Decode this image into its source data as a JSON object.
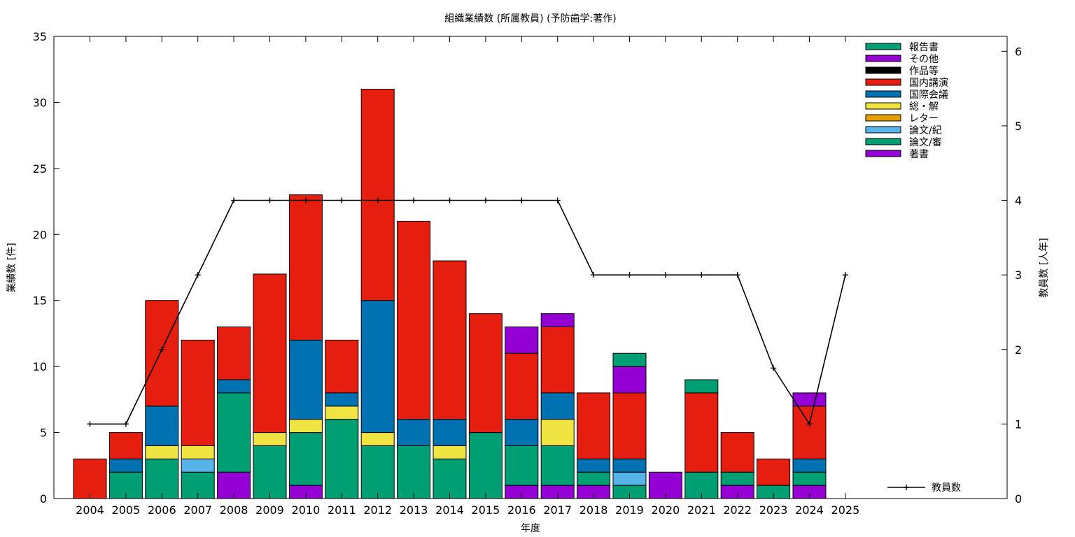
{
  "chart_data": {
    "type": "bar",
    "stacked": true,
    "title": "組織業績数 (所属教員) (予防歯学:著作)",
    "xlabel": "年度",
    "ylabel": "業績数 [件]",
    "y2label": "教員数 [人年]",
    "ylim": [
      0,
      35
    ],
    "y2lim": [
      0,
      6.2
    ],
    "yticks": [
      0,
      5,
      10,
      15,
      20,
      25,
      30,
      35
    ],
    "y2ticks": [
      0,
      1,
      2,
      3,
      4,
      5,
      6
    ],
    "categories": [
      "2004",
      "2005",
      "2006",
      "2007",
      "2008",
      "2009",
      "2010",
      "2011",
      "2012",
      "2013",
      "2014",
      "2015",
      "2016",
      "2017",
      "2018",
      "2019",
      "2020",
      "2021",
      "2022",
      "2023",
      "2024",
      "2025"
    ],
    "series": [
      {
        "name": "著書",
        "color": "#9400d3",
        "values": [
          0,
          0,
          0,
          0,
          2,
          0,
          1,
          0,
          0,
          0,
          0,
          0,
          1,
          1,
          1,
          0,
          2,
          0,
          1,
          0,
          1,
          0
        ]
      },
      {
        "name": "論文/審",
        "color": "#009e73",
        "values": [
          0,
          2,
          3,
          2,
          6,
          4,
          4,
          6,
          4,
          4,
          3,
          5,
          3,
          3,
          1,
          1,
          0,
          2,
          1,
          1,
          1,
          0
        ]
      },
      {
        "name": "論文/紀",
        "color": "#56b4e9",
        "values": [
          0,
          0,
          0,
          1,
          0,
          0,
          0,
          0,
          0,
          0,
          0,
          0,
          0,
          0,
          0,
          1,
          0,
          0,
          0,
          0,
          0,
          0
        ]
      },
      {
        "name": "レター",
        "color": "#e69f00",
        "values": [
          0,
          0,
          0,
          0,
          0,
          0,
          0,
          0,
          0,
          0,
          0,
          0,
          0,
          0,
          0,
          0,
          0,
          0,
          0,
          0,
          0,
          0
        ]
      },
      {
        "name": "総・解",
        "color": "#f0e442",
        "values": [
          0,
          0,
          1,
          1,
          0,
          1,
          1,
          1,
          1,
          0,
          1,
          0,
          0,
          2,
          0,
          0,
          0,
          0,
          0,
          0,
          0,
          0
        ]
      },
      {
        "name": "国際会議",
        "color": "#0072b2",
        "values": [
          0,
          1,
          3,
          0,
          1,
          0,
          6,
          1,
          10,
          2,
          2,
          0,
          2,
          2,
          1,
          1,
          0,
          0,
          0,
          0,
          1,
          0
        ]
      },
      {
        "name": "国内講演",
        "color": "#e51e10",
        "values": [
          3,
          2,
          8,
          8,
          4,
          12,
          11,
          4,
          16,
          15,
          12,
          9,
          5,
          5,
          5,
          5,
          0,
          6,
          3,
          2,
          4,
          0
        ]
      },
      {
        "name": "作品等",
        "color": "#000000",
        "values": [
          0,
          0,
          0,
          0,
          0,
          0,
          0,
          0,
          0,
          0,
          0,
          0,
          0,
          0,
          0,
          0,
          0,
          0,
          0,
          0,
          0,
          0
        ]
      },
      {
        "name": "その他",
        "color": "#9400d3",
        "values": [
          0,
          0,
          0,
          0,
          0,
          0,
          0,
          0,
          0,
          0,
          0,
          0,
          2,
          1,
          0,
          2,
          0,
          0,
          0,
          0,
          1,
          0
        ]
      },
      {
        "name": "報告書",
        "color": "#009e73",
        "values": [
          0,
          0,
          0,
          0,
          0,
          0,
          0,
          0,
          0,
          0,
          0,
          0,
          0,
          0,
          0,
          1,
          0,
          1,
          0,
          0,
          0,
          0
        ]
      }
    ],
    "line_series": {
      "name": "教員数",
      "axis": "y2",
      "color": "#000000",
      "x": [
        "2004",
        "2005",
        "2006",
        "2007",
        "2008",
        "2009",
        "2010",
        "2011",
        "2012",
        "2013",
        "2014",
        "2015",
        "2016",
        "2017",
        "2018",
        "2019",
        "2020",
        "2021",
        "2022",
        "2023",
        "2024",
        "2025"
      ],
      "values": [
        1,
        1,
        2,
        3,
        4,
        4,
        4,
        4,
        4,
        4,
        4,
        4,
        4,
        4,
        3,
        3,
        3,
        3,
        3,
        1.75,
        1,
        3
      ]
    },
    "legend_position": "top-right",
    "line_legend_position": "bottom-right",
    "grid": false
  }
}
